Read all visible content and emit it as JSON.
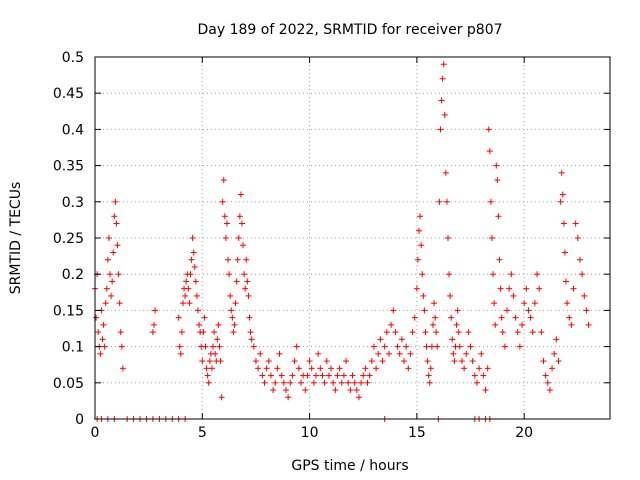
{
  "chart_data": {
    "type": "scatter",
    "title": "Day 189 of 2022, SRMTID for receiver p807",
    "xlabel": "GPS time / hours",
    "ylabel": "SRMTID / TECUs",
    "xlim": [
      0,
      24
    ],
    "ylim": [
      0,
      0.5
    ],
    "xticks": [
      0,
      5,
      10,
      15,
      20
    ],
    "xtick_labels": [
      "0",
      "5",
      "10",
      "15",
      "20"
    ],
    "yticks": [
      0,
      0.05,
      0.1,
      0.15,
      0.2,
      0.25,
      0.3,
      0.35,
      0.4,
      0.45,
      0.5
    ],
    "ytick_labels": [
      "0",
      "0.05",
      "0.1",
      "0.15",
      "0.2",
      "0.25",
      "0.3",
      "0.35",
      "0.4",
      "0.45",
      "0.5"
    ],
    "grid": true,
    "marker": "+",
    "color": "#ff0000",
    "series": [
      {
        "name": "SRMTID",
        "points": [
          [
            0.0,
            0.18
          ],
          [
            0.05,
            0.14
          ],
          [
            0.1,
            0.2
          ],
          [
            0.15,
            0.12
          ],
          [
            0.2,
            0.1
          ],
          [
            0.25,
            0.09
          ],
          [
            0.3,
            0.15
          ],
          [
            0.35,
            0.11
          ],
          [
            0.4,
            0.13
          ],
          [
            0.45,
            0.1
          ],
          [
            0.5,
            0.16
          ],
          [
            0.55,
            0.18
          ],
          [
            0.6,
            0.22
          ],
          [
            0.65,
            0.25
          ],
          [
            0.7,
            0.2
          ],
          [
            0.75,
            0.17
          ],
          [
            0.8,
            0.19
          ],
          [
            0.85,
            0.23
          ],
          [
            0.9,
            0.28
          ],
          [
            0.95,
            0.3
          ],
          [
            1.0,
            0.27
          ],
          [
            1.05,
            0.24
          ],
          [
            1.1,
            0.2
          ],
          [
            1.15,
            0.16
          ],
          [
            1.2,
            0.12
          ],
          [
            1.25,
            0.1
          ],
          [
            1.3,
            0.07
          ],
          [
            0.1,
            0.0
          ],
          [
            0.3,
            0.0
          ],
          [
            0.6,
            0.0
          ],
          [
            0.9,
            0.0
          ],
          [
            1.5,
            0.0
          ],
          [
            1.8,
            0.0
          ],
          [
            2.1,
            0.0
          ],
          [
            2.4,
            0.0
          ],
          [
            2.7,
            0.0
          ],
          [
            3.0,
            0.0
          ],
          [
            3.3,
            0.0
          ],
          [
            3.6,
            0.0
          ],
          [
            3.9,
            0.0
          ],
          [
            4.2,
            0.0
          ],
          [
            2.8,
            0.15
          ],
          [
            2.75,
            0.13
          ],
          [
            2.7,
            0.12
          ],
          [
            3.9,
            0.14
          ],
          [
            3.95,
            0.1
          ],
          [
            4.0,
            0.09
          ],
          [
            4.05,
            0.12
          ],
          [
            4.1,
            0.16
          ],
          [
            4.15,
            0.18
          ],
          [
            4.2,
            0.17
          ],
          [
            4.25,
            0.19
          ],
          [
            4.3,
            0.2
          ],
          [
            4.35,
            0.18
          ],
          [
            4.4,
            0.16
          ],
          [
            4.45,
            0.2
          ],
          [
            4.5,
            0.22
          ],
          [
            4.55,
            0.25
          ],
          [
            4.6,
            0.23
          ],
          [
            4.65,
            0.21
          ],
          [
            4.7,
            0.19
          ],
          [
            4.75,
            0.17
          ],
          [
            4.8,
            0.15
          ],
          [
            4.85,
            0.13
          ],
          [
            4.9,
            0.12
          ],
          [
            4.95,
            0.1
          ],
          [
            5.0,
            0.08
          ],
          [
            5.05,
            0.12
          ],
          [
            5.1,
            0.14
          ],
          [
            5.15,
            0.1
          ],
          [
            5.2,
            0.07
          ],
          [
            5.25,
            0.06
          ],
          [
            5.3,
            0.05
          ],
          [
            5.35,
            0.08
          ],
          [
            5.4,
            0.09
          ],
          [
            5.45,
            0.07
          ],
          [
            5.5,
            0.1
          ],
          [
            5.55,
            0.12
          ],
          [
            5.6,
            0.09
          ],
          [
            5.65,
            0.08
          ],
          [
            5.7,
            0.11
          ],
          [
            5.75,
            0.13
          ],
          [
            5.8,
            0.1
          ],
          [
            5.85,
            0.08
          ],
          [
            5.9,
            0.03
          ],
          [
            5.95,
            0.3
          ],
          [
            6.0,
            0.33
          ],
          [
            6.05,
            0.28
          ],
          [
            6.1,
            0.25
          ],
          [
            6.15,
            0.27
          ],
          [
            6.2,
            0.22
          ],
          [
            6.25,
            0.2
          ],
          [
            6.3,
            0.17
          ],
          [
            6.35,
            0.15
          ],
          [
            6.4,
            0.14
          ],
          [
            6.45,
            0.12
          ],
          [
            6.5,
            0.13
          ],
          [
            6.55,
            0.16
          ],
          [
            6.6,
            0.19
          ],
          [
            6.65,
            0.22
          ],
          [
            6.7,
            0.25
          ],
          [
            6.75,
            0.28
          ],
          [
            6.8,
            0.31
          ],
          [
            6.85,
            0.27
          ],
          [
            6.9,
            0.24
          ],
          [
            6.95,
            0.2
          ],
          [
            7.0,
            0.18
          ],
          [
            7.05,
            0.22
          ],
          [
            7.1,
            0.19
          ],
          [
            7.15,
            0.17
          ],
          [
            7.2,
            0.14
          ],
          [
            7.25,
            0.12
          ],
          [
            7.3,
            0.11
          ],
          [
            7.4,
            0.1
          ],
          [
            7.5,
            0.08
          ],
          [
            7.6,
            0.07
          ],
          [
            7.7,
            0.09
          ],
          [
            7.8,
            0.06
          ],
          [
            7.9,
            0.05
          ],
          [
            8.0,
            0.07
          ],
          [
            8.1,
            0.08
          ],
          [
            8.2,
            0.06
          ],
          [
            8.3,
            0.04
          ],
          [
            8.4,
            0.05
          ],
          [
            8.5,
            0.07
          ],
          [
            8.6,
            0.09
          ],
          [
            8.7,
            0.06
          ],
          [
            8.8,
            0.05
          ],
          [
            8.9,
            0.04
          ],
          [
            9.0,
            0.03
          ],
          [
            9.1,
            0.05
          ],
          [
            9.2,
            0.06
          ],
          [
            9.3,
            0.08
          ],
          [
            9.4,
            0.1
          ],
          [
            9.5,
            0.07
          ],
          [
            9.6,
            0.05
          ],
          [
            9.7,
            0.06
          ],
          [
            9.8,
            0.04
          ],
          [
            9.9,
            0.06
          ],
          [
            10.0,
            0.08
          ],
          [
            10.1,
            0.07
          ],
          [
            10.2,
            0.05
          ],
          [
            10.3,
            0.06
          ],
          [
            10.4,
            0.09
          ],
          [
            10.5,
            0.07
          ],
          [
            10.6,
            0.06
          ],
          [
            10.7,
            0.05
          ],
          [
            10.8,
            0.08
          ],
          [
            10.9,
            0.06
          ],
          [
            11.0,
            0.07
          ],
          [
            11.1,
            0.05
          ],
          [
            11.2,
            0.04
          ],
          [
            11.3,
            0.06
          ],
          [
            11.4,
            0.07
          ],
          [
            11.5,
            0.05
          ],
          [
            11.6,
            0.06
          ],
          [
            11.7,
            0.08
          ],
          [
            11.8,
            0.05
          ],
          [
            11.9,
            0.04
          ],
          [
            12.0,
            0.06
          ],
          [
            12.1,
            0.05
          ],
          [
            12.2,
            0.04
          ],
          [
            12.3,
            0.03
          ],
          [
            12.4,
            0.05
          ],
          [
            12.5,
            0.06
          ],
          [
            12.6,
            0.07
          ],
          [
            12.7,
            0.05
          ],
          [
            12.8,
            0.06
          ],
          [
            12.9,
            0.08
          ],
          [
            13.0,
            0.1
          ],
          [
            13.1,
            0.07
          ],
          [
            13.2,
            0.09
          ],
          [
            13.3,
            0.11
          ],
          [
            13.4,
            0.08
          ],
          [
            13.5,
            0.1
          ],
          [
            13.6,
            0.12
          ],
          [
            13.7,
            0.09
          ],
          [
            13.8,
            0.13
          ],
          [
            13.9,
            0.15
          ],
          [
            14.0,
            0.12
          ],
          [
            14.1,
            0.1
          ],
          [
            14.2,
            0.09
          ],
          [
            14.3,
            0.11
          ],
          [
            14.4,
            0.08
          ],
          [
            14.5,
            0.1
          ],
          [
            14.6,
            0.07
          ],
          [
            14.7,
            0.09
          ],
          [
            14.8,
            0.12
          ],
          [
            14.9,
            0.14
          ],
          [
            13.5,
            0.0
          ],
          [
            15.0,
            0.18
          ],
          [
            15.05,
            0.22
          ],
          [
            15.1,
            0.26
          ],
          [
            15.15,
            0.28
          ],
          [
            15.2,
            0.24
          ],
          [
            15.25,
            0.2
          ],
          [
            15.3,
            0.17
          ],
          [
            15.35,
            0.15
          ],
          [
            15.4,
            0.12
          ],
          [
            15.45,
            0.1
          ],
          [
            15.5,
            0.08
          ],
          [
            15.55,
            0.06
          ],
          [
            15.6,
            0.05
          ],
          [
            15.65,
            0.07
          ],
          [
            15.7,
            0.1
          ],
          [
            15.75,
            0.13
          ],
          [
            15.8,
            0.16
          ],
          [
            15.85,
            0.14
          ],
          [
            15.9,
            0.12
          ],
          [
            15.95,
            0.1
          ],
          [
            16.0,
            0.0
          ],
          [
            16.05,
            0.3
          ],
          [
            16.1,
            0.4
          ],
          [
            16.15,
            0.44
          ],
          [
            16.2,
            0.47
          ],
          [
            16.25,
            0.49
          ],
          [
            16.3,
            0.42
          ],
          [
            16.35,
            0.34
          ],
          [
            16.4,
            0.3
          ],
          [
            16.45,
            0.25
          ],
          [
            16.5,
            0.2
          ],
          [
            16.55,
            0.17
          ],
          [
            16.6,
            0.14
          ],
          [
            16.65,
            0.11
          ],
          [
            16.7,
            0.09
          ],
          [
            16.75,
            0.08
          ],
          [
            16.8,
            0.1
          ],
          [
            16.85,
            0.13
          ],
          [
            16.9,
            0.15
          ],
          [
            16.95,
            0.12
          ],
          [
            17.0,
            0.1
          ],
          [
            17.1,
            0.08
          ],
          [
            17.2,
            0.07
          ],
          [
            17.3,
            0.09
          ],
          [
            17.4,
            0.12
          ],
          [
            17.5,
            0.1
          ],
          [
            17.6,
            0.08
          ],
          [
            17.7,
            0.06
          ],
          [
            17.8,
            0.05
          ],
          [
            17.9,
            0.07
          ],
          [
            17.7,
            0.0
          ],
          [
            17.9,
            0.0
          ],
          [
            18.0,
            0.09
          ],
          [
            18.1,
            0.06
          ],
          [
            18.2,
            0.04
          ],
          [
            18.3,
            0.07
          ],
          [
            18.35,
            0.4
          ],
          [
            18.4,
            0.37
          ],
          [
            18.45,
            0.3
          ],
          [
            18.5,
            0.25
          ],
          [
            18.55,
            0.2
          ],
          [
            18.6,
            0.16
          ],
          [
            18.65,
            0.13
          ],
          [
            18.7,
            0.35
          ],
          [
            18.75,
            0.33
          ],
          [
            18.8,
            0.28
          ],
          [
            18.85,
            0.22
          ],
          [
            18.9,
            0.18
          ],
          [
            18.95,
            0.14
          ],
          [
            18.2,
            0.0
          ],
          [
            18.4,
            0.0
          ],
          [
            19.0,
            0.12
          ],
          [
            19.1,
            0.1
          ],
          [
            19.2,
            0.15
          ],
          [
            19.3,
            0.18
          ],
          [
            19.4,
            0.2
          ],
          [
            19.5,
            0.17
          ],
          [
            19.6,
            0.14
          ],
          [
            19.7,
            0.12
          ],
          [
            19.8,
            0.1
          ],
          [
            19.9,
            0.13
          ],
          [
            20.0,
            0.16
          ],
          [
            20.1,
            0.18
          ],
          [
            20.2,
            0.15
          ],
          [
            20.3,
            0.14
          ],
          [
            20.4,
            0.12
          ],
          [
            20.5,
            0.16
          ],
          [
            20.6,
            0.2
          ],
          [
            20.7,
            0.18
          ],
          [
            20.8,
            0.12
          ],
          [
            20.9,
            0.08
          ],
          [
            21.0,
            0.06
          ],
          [
            21.1,
            0.05
          ],
          [
            21.2,
            0.04
          ],
          [
            21.3,
            0.07
          ],
          [
            21.4,
            0.09
          ],
          [
            21.5,
            0.11
          ],
          [
            21.6,
            0.08
          ],
          [
            21.7,
            0.3
          ],
          [
            21.75,
            0.34
          ],
          [
            21.8,
            0.31
          ],
          [
            21.85,
            0.27
          ],
          [
            21.9,
            0.23
          ],
          [
            21.95,
            0.19
          ],
          [
            22.0,
            0.16
          ],
          [
            22.1,
            0.14
          ],
          [
            22.2,
            0.13
          ],
          [
            22.3,
            0.18
          ],
          [
            22.4,
            0.27
          ],
          [
            22.5,
            0.25
          ],
          [
            22.6,
            0.22
          ],
          [
            22.7,
            0.2
          ],
          [
            22.8,
            0.17
          ],
          [
            22.9,
            0.15
          ],
          [
            23.0,
            0.13
          ]
        ]
      }
    ]
  }
}
